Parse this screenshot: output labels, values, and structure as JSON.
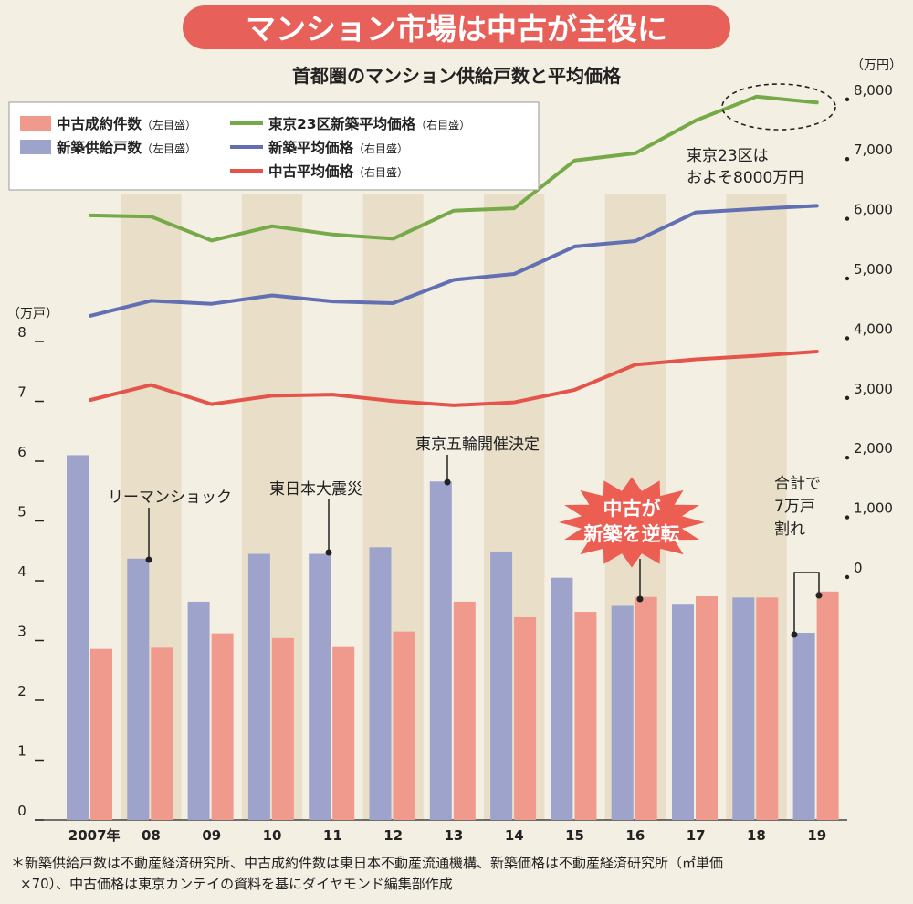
{
  "banner": "マンション市場は中古が主役に",
  "subtitle": "首都圏のマンション供給戸数と平均価格",
  "left_axis_unit": "（万戸）",
  "right_axis_unit": "（万円）",
  "legend": {
    "used_contracts": "中古成約件数",
    "used_contracts_note": "（左目盛）",
    "new_supply": "新築供給戸数",
    "new_supply_note": "（左目盛）",
    "tokyo23_price": "東京23区新築平均価格",
    "tokyo23_price_note": "（右目盛）",
    "new_price": "新築平均価格",
    "new_price_note": "（右目盛）",
    "used_price": "中古平均価格",
    "used_price_note": "（右目盛）"
  },
  "annotations": {
    "lehman": "リーマンショック",
    "quake": "東日本大震災",
    "olympics": "東京五輪開催決定",
    "tokyo23_line1": "東京23区は",
    "tokyo23_line2": "およそ8000万円",
    "reversal_line1": "中古が",
    "reversal_line2": "新築を逆転",
    "total_line1": "合計で",
    "total_line2": "7万戸",
    "total_line3": "割れ"
  },
  "footnote_line1": "＊新築供給戸数は不動産経済研究所、中古成約件数は東日本不動産流通機構、新築価格は不動産経済研究所（㎡単価",
  "footnote_line2": "×70）、中古価格は東京カンテイの資料を基にダイヤモンド編集部作成",
  "colors": {
    "background": "#f4efe3",
    "band": "#e9dfc8",
    "new_supply_bar": "#9ea3cb",
    "used_contracts_bar": "#ef9a8c",
    "tokyo23_line": "#76aa49",
    "new_price_line": "#6270b3",
    "used_price_line": "#e5544b",
    "banner": "#e8605a",
    "burst": "#ec5d52"
  },
  "chart_data": {
    "type": "bar+line",
    "categories": [
      "2007年",
      "08",
      "09",
      "10",
      "11",
      "12",
      "13",
      "14",
      "15",
      "16",
      "17",
      "18",
      "19"
    ],
    "left_axis": {
      "unit": "万戸",
      "ylim": [
        0,
        8
      ],
      "ticks": [
        "0",
        "1",
        "2",
        "3",
        "4",
        "5",
        "6",
        "7",
        "8"
      ]
    },
    "right_axis": {
      "unit": "万円",
      "ylim": [
        0,
        8000
      ],
      "ticks": [
        "0",
        "1,000",
        "2,000",
        "3,000",
        "4,000",
        "5,000",
        "6,000",
        "7,000",
        "8,000"
      ]
    },
    "bar_series": [
      {
        "name": "新築供給戸数",
        "values": [
          6.1,
          4.37,
          3.65,
          4.45,
          4.45,
          4.56,
          5.66,
          4.49,
          4.05,
          3.58,
          3.6,
          3.72,
          3.13
        ]
      },
      {
        "name": "中古成約件数",
        "values": [
          2.86,
          2.88,
          3.12,
          3.04,
          2.89,
          3.15,
          3.65,
          3.39,
          3.48,
          3.73,
          3.74,
          3.72,
          3.82
        ]
      }
    ],
    "line_series": [
      {
        "name": "東京23区新築平均価格",
        "values": [
          5980,
          5960,
          5560,
          5800,
          5660,
          5590,
          6060,
          6100,
          6900,
          7020,
          7570,
          7970,
          7870
        ]
      },
      {
        "name": "新築平均価格",
        "values": [
          4300,
          4550,
          4500,
          4640,
          4540,
          4510,
          4900,
          5000,
          5460,
          5550,
          6030,
          6090,
          6140
        ]
      },
      {
        "name": "中古平均価格",
        "values": [
          2890,
          3140,
          2820,
          2960,
          2980,
          2870,
          2800,
          2850,
          3060,
          3480,
          3570,
          3630,
          3700
        ]
      }
    ]
  }
}
